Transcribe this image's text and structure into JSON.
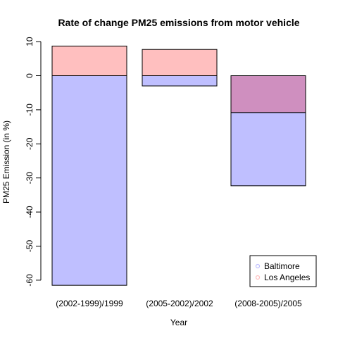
{
  "chart_data": {
    "type": "bar",
    "title": "Rate of change PM25 emissions from motor vehicle",
    "xlabel": "Year",
    "ylabel": "PM25 Emission (in %)",
    "categories": [
      "(2002-1999)/1999",
      "(2005-2002)/2002",
      "(2008-2005)/2005"
    ],
    "series": [
      {
        "name": "Baltimore",
        "values": [
          -61.5,
          -3.0,
          -32.3
        ],
        "color": "#bfbfff"
      },
      {
        "name": "Los Angeles",
        "values": [
          8.7,
          7.7,
          -10.8
        ],
        "color": "#ffbfbf"
      }
    ],
    "overlap_color": "#cf8fbf",
    "ylim": [
      -62,
      10
    ],
    "yticks": [
      10,
      0,
      -10,
      -20,
      -30,
      -40,
      -50,
      -60
    ],
    "grid": false,
    "legend_position": "bottom-right"
  }
}
